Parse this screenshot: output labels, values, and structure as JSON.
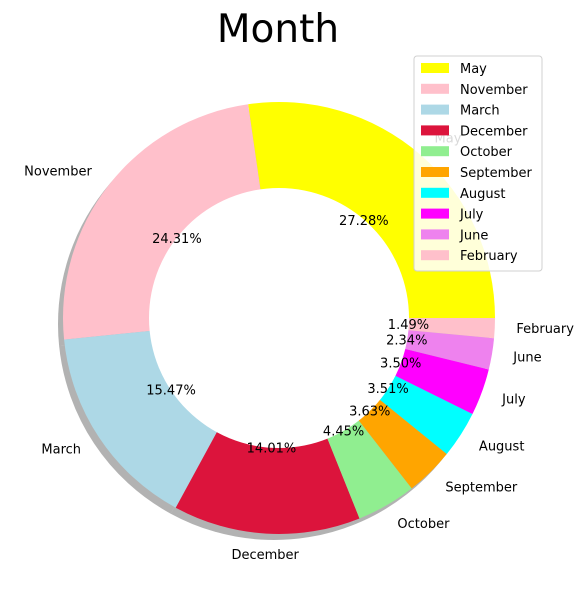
{
  "chart_data": {
    "type": "pie",
    "variant": "donut",
    "title": "Month",
    "start_angle_deg": 0,
    "direction": "counterclockwise",
    "shadow": true,
    "slices": [
      {
        "label": "May",
        "value": 27.28,
        "pct_text": "27.28%",
        "color": "#ffff00"
      },
      {
        "label": "November",
        "value": 24.31,
        "pct_text": "24.31%",
        "color": "#ffc0cb"
      },
      {
        "label": "March",
        "value": 15.47,
        "pct_text": "15.47%",
        "color": "#add8e6"
      },
      {
        "label": "December",
        "value": 14.01,
        "pct_text": "14.01%",
        "color": "#dc143c"
      },
      {
        "label": "October",
        "value": 4.45,
        "pct_text": "4.45%",
        "color": "#90ee90"
      },
      {
        "label": "September",
        "value": 3.63,
        "pct_text": "3.63%",
        "color": "#ffa500"
      },
      {
        "label": "August",
        "value": 3.51,
        "pct_text": "3.51%",
        "color": "#00ffff"
      },
      {
        "label": "July",
        "value": 3.5,
        "pct_text": "3.50%",
        "color": "#ff00ff"
      },
      {
        "label": "June",
        "value": 2.34,
        "pct_text": "2.34%",
        "color": "#ee82ee"
      },
      {
        "label": "February",
        "value": 1.49,
        "pct_text": "1.49%",
        "color": "#ffc0cb"
      }
    ],
    "legend": {
      "placement": "top-right",
      "entries": [
        "May",
        "November",
        "March",
        "December",
        "October",
        "September",
        "August",
        "July",
        "June",
        "February"
      ]
    }
  }
}
